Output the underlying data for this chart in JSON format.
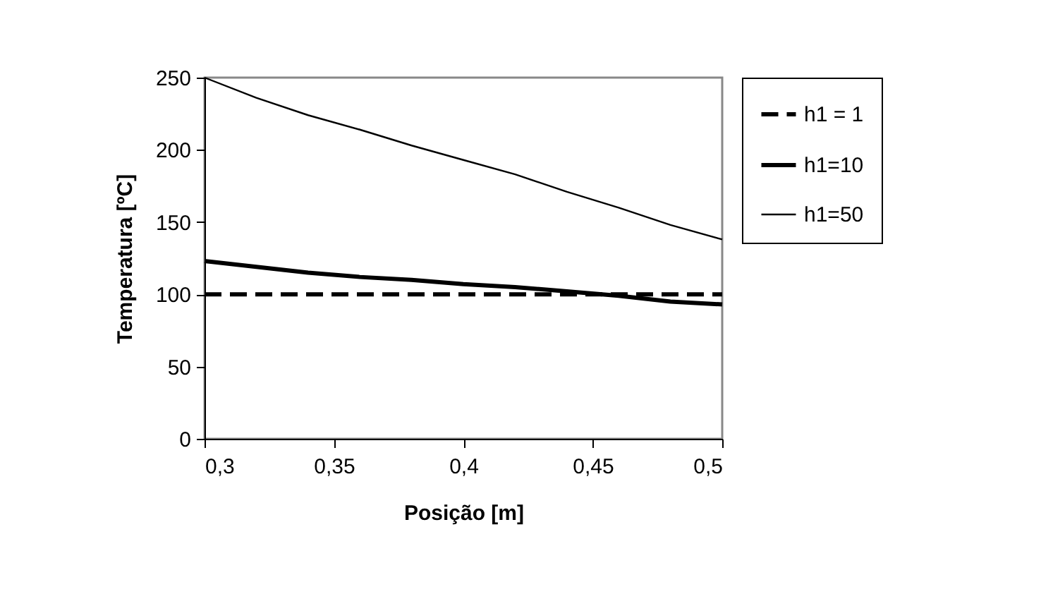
{
  "chart_data": {
    "type": "line",
    "xlabel": "Posição [m]",
    "ylabel": "Temperatura [ºC]",
    "x": [
      0.3,
      0.32,
      0.34,
      0.36,
      0.38,
      0.4,
      0.42,
      0.44,
      0.46,
      0.48,
      0.5
    ],
    "series": [
      {
        "name": "h1 = 1",
        "color": "#000000",
        "line_style": "dashed",
        "values": [
          100,
          100,
          100,
          100,
          100,
          100,
          100,
          100,
          100,
          100,
          100
        ]
      },
      {
        "name": "h1=10",
        "color": "#000000",
        "line_style": "solid",
        "values": [
          123,
          119,
          115,
          112,
          110,
          107,
          105,
          102,
          99,
          95,
          93
        ]
      },
      {
        "name": "h1=50",
        "color": "#000000",
        "line_style": "solid",
        "values": [
          250,
          236,
          224,
          214,
          203,
          193,
          183,
          171,
          160,
          148,
          138
        ]
      }
    ],
    "xlim": [
      0.3,
      0.5
    ],
    "xticks": [
      {
        "value": 0.3,
        "label": "0,3"
      },
      {
        "value": 0.35,
        "label": "0,35"
      },
      {
        "value": 0.4,
        "label": "0,4"
      },
      {
        "value": 0.45,
        "label": "0,45"
      },
      {
        "value": 0.5,
        "label": "0,5"
      }
    ],
    "ylim": [
      0,
      250
    ],
    "yticks": [
      0,
      50,
      100,
      150,
      200,
      250
    ],
    "grid": false,
    "legend": "right",
    "marker": "none"
  }
}
